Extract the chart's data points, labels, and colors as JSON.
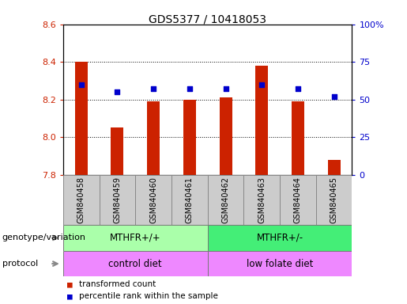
{
  "title": "GDS5377 / 10418053",
  "samples": [
    "GSM840458",
    "GSM840459",
    "GSM840460",
    "GSM840461",
    "GSM840462",
    "GSM840463",
    "GSM840464",
    "GSM840465"
  ],
  "transformed_count": [
    8.4,
    8.05,
    8.19,
    8.2,
    8.21,
    8.38,
    8.19,
    7.88
  ],
  "percentile_rank": [
    60,
    55,
    57,
    57,
    57,
    60,
    57,
    52
  ],
  "ylim_left": [
    7.8,
    8.6
  ],
  "ylim_right": [
    0,
    100
  ],
  "yticks_left": [
    7.8,
    8.0,
    8.2,
    8.4,
    8.6
  ],
  "yticks_right": [
    0,
    25,
    50,
    75,
    100
  ],
  "bar_color": "#cc2200",
  "dot_color": "#0000cc",
  "bar_bottom": 7.8,
  "genotype_groups": [
    {
      "label": "MTHFR+/+",
      "start": 0,
      "end": 4,
      "color": "#aaffaa"
    },
    {
      "label": "MTHFR+/-",
      "start": 4,
      "end": 8,
      "color": "#44ee77"
    }
  ],
  "protocol_groups": [
    {
      "label": "control diet",
      "start": 0,
      "end": 4,
      "color": "#ee88ff"
    },
    {
      "label": "low folate diet",
      "start": 4,
      "end": 8,
      "color": "#ee88ff"
    }
  ],
  "tick_label_color_left": "#cc2200",
  "tick_label_color_right": "#0000cc",
  "sample_box_color": "#cccccc",
  "sample_box_edge": "#888888"
}
